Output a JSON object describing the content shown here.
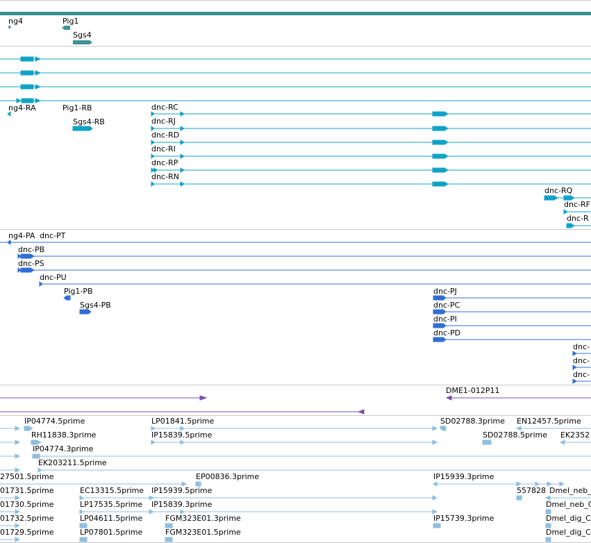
{
  "colors": {
    "gene": "#3b9494",
    "transcript_cds_strand": "#0fa3c6",
    "transcript_minus": "#2f6fd6",
    "clone": "#7a51a8",
    "est": "#8fbedf",
    "scale_bar": "#3b8f8f"
  },
  "tracks": {
    "gene": {
      "labels": [
        "ng4",
        "Pig1",
        "Sgs4"
      ]
    },
    "transcripts_top": {
      "labels": [
        "ng4-RA",
        "Pig1-RB",
        "Sgs4-RB",
        "dnc-RC",
        "dnc-RJ",
        "dnc-RD",
        "dnc-RI",
        "dnc-RP",
        "dnc-RN",
        "dnc-RQ",
        "dnc-RF",
        "dnc-R"
      ]
    },
    "transcripts_minus": {
      "labels": [
        "ng4-PA",
        "dnc-PT",
        "dnc-PB",
        "dnc-PS",
        "dnc-PU",
        "Pig1-PB",
        "Sgs4-PB",
        "dnc-PJ",
        "dnc-PC",
        "dnc-PI",
        "dnc-PD",
        "dnc-",
        "dnc-",
        "dnc-"
      ]
    },
    "clones": {
      "labels": [
        "DME1-012P11"
      ]
    },
    "ests": {
      "labels": [
        "IP04774.5prime",
        "LP01841.5prime",
        "SD02788.3prime",
        "EN12457.5prime",
        "RH11838.3prime",
        "IP15839.5prime",
        "SD02788.5prime",
        "EK2352",
        "IP04774.3prime",
        "EK203211.5prime",
        "27501.5prime",
        "EP00836.3prime",
        "IP15939.3prime",
        "01731.5prime",
        "EC13315.5prime",
        "IP15939.5prime",
        "557828",
        "Dmel_neb_",
        "01730.5prime",
        "LP17535.5prime",
        "IP15839.3prime",
        "Dmel_neb_C",
        "01732.5prime",
        "LP04611.5prime",
        "FGM323E01.3prime",
        "IP15739.3prime",
        "Dmel_dig_C",
        "01729.5prime",
        "LP07801.5prime",
        "FGM323E01.5prime",
        "Dmel_dig_C"
      ]
    }
  }
}
